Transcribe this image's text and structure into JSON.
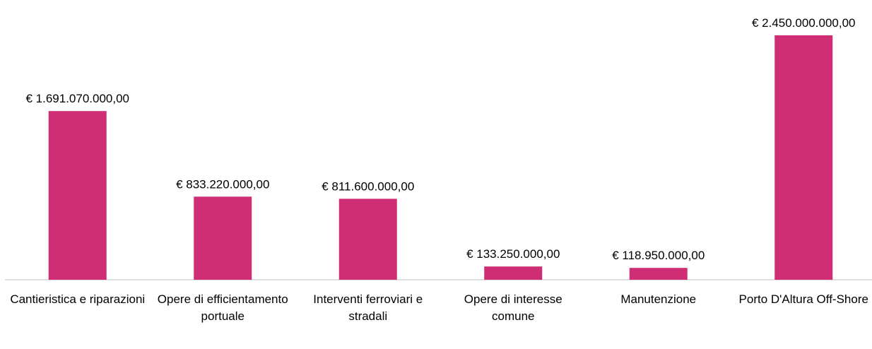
{
  "chart_data": {
    "type": "bar",
    "categories": [
      "Cantieristica e riparazioni",
      "Opere di efficientamento portuale",
      "Interventi ferroviari e stradali",
      "Opere di interesse comune",
      "Manutenzione",
      "Porto D'Altura Off-Shore"
    ],
    "values": [
      1691070000,
      833220000,
      811600000,
      133250000,
      118950000,
      2450000000
    ],
    "value_labels": [
      "€ 1.691.070.000,00",
      "€ 833.220.000,00",
      "€ 811.600.000,00",
      "€ 133.250.000,00",
      "€ 118.950.000,00",
      "€ 2.450.000.000,00"
    ],
    "color": "#d02e74"
  }
}
